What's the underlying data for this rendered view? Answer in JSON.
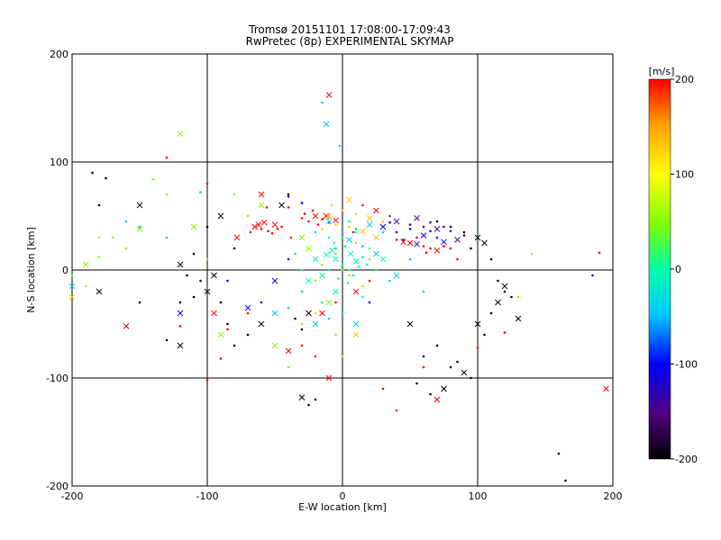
{
  "chart_data": {
    "type": "scatter",
    "title": "Tromsø 20151101 17:08:00-17:09:43",
    "subtitle": "RwPretec (8p) EXPERIMENTAL SKYMAP",
    "xlabel": "E-W location [km]",
    "ylabel": "N-S location [km]",
    "xlim": [
      -200,
      200
    ],
    "ylim": [
      -200,
      200
    ],
    "x_ticks": [
      "-200",
      "-100",
      "0",
      "100",
      "200"
    ],
    "y_ticks": [
      "-200",
      "-100",
      "0",
      "100",
      "200"
    ],
    "grid_lines": [
      -100,
      0,
      100
    ],
    "colorbar": {
      "unit": "[m/s]",
      "min": -200,
      "max": 200,
      "ticks": [
        "-200",
        "-100",
        "0",
        "100",
        "200"
      ]
    },
    "point_series": [
      {
        "velocity": 200,
        "color": "#ff0000",
        "points": [
          [
            -65,
            40
          ],
          [
            -60,
            38
          ],
          [
            -55,
            36
          ],
          [
            -50,
            42
          ],
          [
            -45,
            40
          ],
          [
            -68,
            35
          ],
          [
            -58,
            44
          ],
          [
            -52,
            34
          ],
          [
            -48,
            38
          ],
          [
            -62,
            42
          ],
          [
            -30,
            48
          ],
          [
            -25,
            45
          ],
          [
            -20,
            50
          ],
          [
            -15,
            47
          ],
          [
            -10,
            44
          ],
          [
            -5,
            46
          ],
          [
            -28,
            52
          ],
          [
            -18,
            42
          ],
          [
            -12,
            50
          ],
          [
            -22,
            55
          ],
          [
            40,
            28
          ],
          [
            50,
            25
          ],
          [
            60,
            22
          ],
          [
            65,
            20
          ],
          [
            70,
            18
          ],
          [
            75,
            22
          ],
          [
            55,
            30
          ],
          [
            45,
            26
          ],
          [
            80,
            20
          ],
          [
            62,
            16
          ],
          [
            -10,
            162
          ],
          [
            -120,
            -52
          ],
          [
            -100,
            -102
          ],
          [
            -160,
            -52
          ],
          [
            -90,
            -82
          ],
          [
            -70,
            -40
          ],
          [
            -40,
            -75
          ],
          [
            -30,
            -70
          ],
          [
            60,
            -90
          ],
          [
            70,
            -120
          ],
          [
            100,
            -72
          ],
          [
            120,
            -58
          ],
          [
            -95,
            -40
          ],
          [
            -85,
            -55
          ],
          [
            190,
            16
          ],
          [
            195,
            -110
          ],
          [
            -130,
            104
          ],
          [
            -100,
            80
          ],
          [
            10,
            -20
          ],
          [
            20,
            -10
          ],
          [
            -20,
            -80
          ],
          [
            -10,
            -100
          ],
          [
            30,
            -110
          ],
          [
            40,
            -130
          ],
          [
            -60,
            70
          ],
          [
            -40,
            58
          ],
          [
            15,
            60
          ],
          [
            25,
            55
          ],
          [
            35,
            50
          ],
          [
            -38,
            30
          ],
          [
            -78,
            30
          ],
          [
            -56,
            58
          ],
          [
            8,
            35
          ],
          [
            -15,
            -40
          ],
          [
            -5,
            -30
          ],
          [
            85,
            10
          ]
        ]
      },
      {
        "velocity": 100,
        "color": "#ffc800",
        "points": [
          [
            -10,
            50
          ],
          [
            0,
            55
          ],
          [
            10,
            52
          ],
          [
            20,
            48
          ],
          [
            -5,
            42
          ],
          [
            5,
            40
          ],
          [
            15,
            36
          ],
          [
            -15,
            38
          ],
          [
            30,
            45
          ],
          [
            25,
            30
          ],
          [
            -20,
            -40
          ],
          [
            -30,
            -50
          ],
          [
            10,
            -60
          ],
          [
            0,
            -80
          ],
          [
            130,
            -25
          ],
          [
            -200,
            -25
          ],
          [
            -190,
            -15
          ],
          [
            -180,
            30
          ],
          [
            5,
            65
          ],
          [
            -8,
            60
          ]
        ]
      },
      {
        "velocity": 60,
        "color": "#80ff00",
        "points": [
          [
            -120,
            126
          ],
          [
            -140,
            84
          ],
          [
            -130,
            70
          ],
          [
            -150,
            38
          ],
          [
            -170,
            30
          ],
          [
            -160,
            20
          ],
          [
            -190,
            5
          ],
          [
            -180,
            12
          ],
          [
            -200,
            -5
          ],
          [
            -110,
            40
          ],
          [
            -100,
            10
          ],
          [
            -20,
            -10
          ],
          [
            -10,
            -30
          ],
          [
            0,
            0
          ],
          [
            20,
            10
          ],
          [
            -30,
            30
          ],
          [
            10,
            25
          ],
          [
            -40,
            -90
          ],
          [
            -50,
            -70
          ],
          [
            -5,
            15
          ],
          [
            5,
            -5
          ],
          [
            -25,
            20
          ],
          [
            -15,
            5
          ],
          [
            15,
            -15
          ],
          [
            -60,
            60
          ],
          [
            -70,
            50
          ],
          [
            -80,
            70
          ],
          [
            -90,
            -60
          ],
          [
            -5,
            -60
          ],
          [
            140,
            15
          ]
        ]
      },
      {
        "velocity": 0,
        "color": "#00ffaa",
        "points": [
          [
            -5,
            10
          ],
          [
            0,
            5
          ],
          [
            5,
            0
          ],
          [
            10,
            8
          ],
          [
            -10,
            0
          ],
          [
            15,
            12
          ],
          [
            -8,
            18
          ],
          [
            2,
            22
          ],
          [
            8,
            -5
          ],
          [
            -12,
            14
          ],
          [
            12,
            3
          ],
          [
            -3,
            -8
          ],
          [
            6,
            15
          ],
          [
            -6,
            25
          ],
          [
            18,
            5
          ],
          [
            -15,
            -5
          ],
          [
            0,
            30
          ],
          [
            20,
            20
          ],
          [
            -20,
            10
          ],
          [
            4,
            -12
          ],
          [
            25,
            0
          ],
          [
            -25,
            -10
          ],
          [
            10,
            35
          ],
          [
            -10,
            30
          ],
          [
            30,
            10
          ],
          [
            -30,
            0
          ],
          [
            5,
            45
          ],
          [
            -5,
            -20
          ],
          [
            15,
            -25
          ],
          [
            -15,
            -30
          ]
        ]
      },
      {
        "velocity": -50,
        "color": "#00c8ff",
        "points": [
          [
            -10,
            45
          ],
          [
            0,
            40
          ],
          [
            10,
            38
          ],
          [
            20,
            42
          ],
          [
            30,
            35
          ],
          [
            -20,
            35
          ],
          [
            5,
            28
          ],
          [
            15,
            22
          ],
          [
            -5,
            20
          ],
          [
            25,
            15
          ],
          [
            -30,
            -20
          ],
          [
            -40,
            -35
          ],
          [
            -20,
            -50
          ],
          [
            -10,
            -45
          ],
          [
            0,
            -40
          ],
          [
            10,
            -50
          ],
          [
            -160,
            45
          ],
          [
            -150,
            40
          ],
          [
            -200,
            -15
          ],
          [
            -105,
            72
          ],
          [
            -130,
            30
          ],
          [
            40,
            -5
          ],
          [
            50,
            10
          ],
          [
            -2,
            115
          ],
          [
            -12,
            135
          ],
          [
            -15,
            155
          ],
          [
            60,
            -20
          ],
          [
            -50,
            -40
          ],
          [
            35,
            -10
          ],
          [
            -35,
            15
          ]
        ]
      },
      {
        "velocity": -100,
        "color": "#0000ff",
        "points": [
          [
            30,
            40
          ],
          [
            40,
            35
          ],
          [
            50,
            38
          ],
          [
            60,
            32
          ],
          [
            70,
            30
          ],
          [
            45,
            28
          ],
          [
            55,
            24
          ],
          [
            65,
            36
          ],
          [
            35,
            44
          ],
          [
            75,
            26
          ],
          [
            -40,
            68
          ],
          [
            -30,
            62
          ],
          [
            -50,
            -10
          ],
          [
            -40,
            10
          ],
          [
            -60,
            -30
          ],
          [
            -70,
            -35
          ],
          [
            -85,
            -10
          ],
          [
            185,
            -5
          ],
          [
            -120,
            -40
          ],
          [
            20,
            -30
          ]
        ]
      },
      {
        "velocity": -150,
        "color": "#500080",
        "points": [
          [
            40,
            45
          ],
          [
            50,
            42
          ],
          [
            60,
            40
          ],
          [
            70,
            38
          ],
          [
            80,
            36
          ],
          [
            90,
            32
          ],
          [
            55,
            48
          ],
          [
            65,
            44
          ],
          [
            75,
            40
          ],
          [
            85,
            28
          ]
        ]
      },
      {
        "velocity": -200,
        "color": "#000000",
        "points": [
          [
            -150,
            60
          ],
          [
            -180,
            60
          ],
          [
            -40,
            70
          ],
          [
            -45,
            60
          ],
          [
            -100,
            40
          ],
          [
            -110,
            15
          ],
          [
            -120,
            5
          ],
          [
            -115,
            -5
          ],
          [
            -105,
            -10
          ],
          [
            -100,
            -20
          ],
          [
            -110,
            -25
          ],
          [
            -120,
            -30
          ],
          [
            -95,
            -5
          ],
          [
            -90,
            -30
          ],
          [
            -130,
            -65
          ],
          [
            -120,
            -70
          ],
          [
            -85,
            -50
          ],
          [
            -70,
            -60
          ],
          [
            -60,
            -50
          ],
          [
            -80,
            -70
          ],
          [
            80,
            -90
          ],
          [
            90,
            -95
          ],
          [
            60,
            -80
          ],
          [
            70,
            -70
          ],
          [
            50,
            -50
          ],
          [
            55,
            -105
          ],
          [
            65,
            -115
          ],
          [
            75,
            -110
          ],
          [
            95,
            -100
          ],
          [
            85,
            -85
          ],
          [
            -30,
            -118
          ],
          [
            -25,
            -125
          ],
          [
            -20,
            -120
          ],
          [
            100,
            -50
          ],
          [
            105,
            -60
          ],
          [
            110,
            -40
          ],
          [
            115,
            -30
          ],
          [
            120,
            -20
          ],
          [
            125,
            -25
          ],
          [
            130,
            -45
          ],
          [
            80,
            40
          ],
          [
            90,
            35
          ],
          [
            100,
            30
          ],
          [
            70,
            45
          ],
          [
            95,
            20
          ],
          [
            105,
            25
          ],
          [
            110,
            10
          ],
          [
            115,
            -10
          ],
          [
            120,
            -15
          ],
          [
            160,
            -170
          ],
          [
            165,
            -195
          ],
          [
            -25,
            -40
          ],
          [
            -35,
            -45
          ],
          [
            -30,
            -55
          ],
          [
            -180,
            -20
          ],
          [
            -185,
            90
          ],
          [
            -175,
            85
          ],
          [
            -90,
            50
          ],
          [
            -80,
            20
          ],
          [
            -150,
            -30
          ]
        ]
      }
    ]
  }
}
